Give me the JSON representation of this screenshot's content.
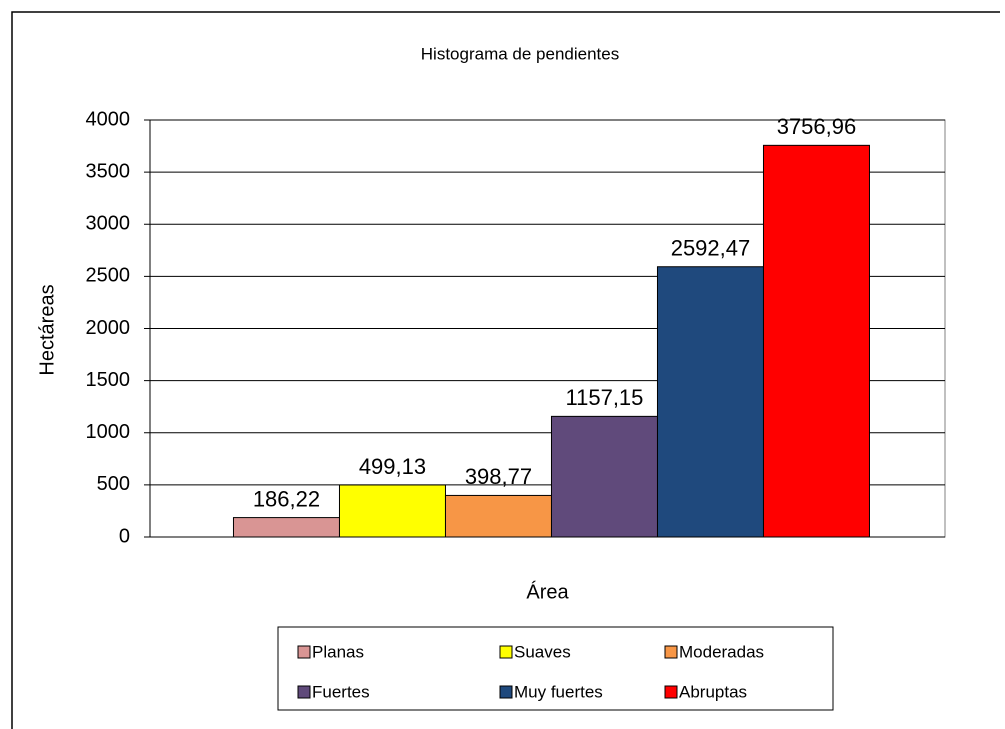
{
  "chart_data": {
    "type": "bar",
    "title": "Histograma de pendientes",
    "y_label": "Hectáreas",
    "categories": [
      "Área"
    ],
    "series": [
      {
        "name": "Planas",
        "color": "#d99594",
        "values": [
          186.22
        ],
        "value_labels": [
          "186,22"
        ]
      },
      {
        "name": "Suaves",
        "color": "#ffff00",
        "values": [
          499.13
        ],
        "value_labels": [
          "499,13"
        ]
      },
      {
        "name": "Moderadas",
        "color": "#f79646",
        "values": [
          398.77
        ],
        "value_labels": [
          "398,77"
        ]
      },
      {
        "name": "Fuertes",
        "color": "#604a7b",
        "values": [
          1157.15
        ],
        "value_labels": [
          "1157,15"
        ]
      },
      {
        "name": "Muy fuertes",
        "color": "#1f497d",
        "values": [
          2592.47
        ],
        "value_labels": [
          "2592,47"
        ]
      },
      {
        "name": "Abruptas",
        "color": "#ff0000",
        "values": [
          3756.96
        ],
        "value_labels": [
          "3756,96"
        ]
      }
    ],
    "ylim": [
      0,
      4000
    ],
    "yticks": [
      0,
      500,
      1000,
      1500,
      2000,
      2500,
      3000,
      3500,
      4000
    ],
    "grid": true,
    "legend": "bottom"
  }
}
